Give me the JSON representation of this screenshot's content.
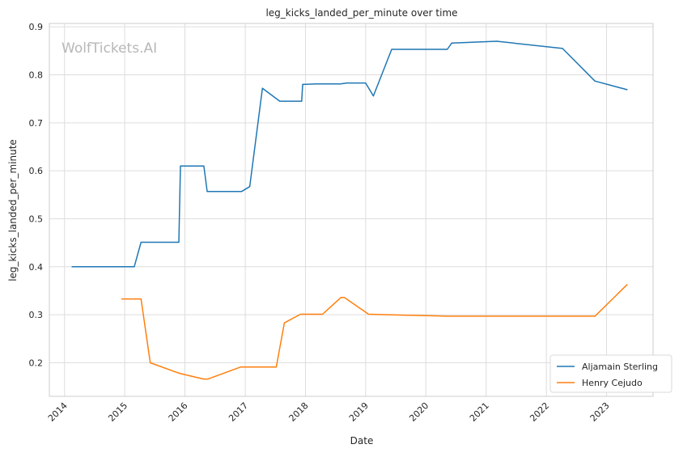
{
  "watermark": "WolfTickets.AI",
  "chart_data": {
    "type": "line",
    "title": "leg_kicks_landed_per_minute over time",
    "xlabel": "Date",
    "ylabel": "leg_kicks_landed_per_minute",
    "xlim": [
      "2013-10-01",
      "2023-10-10"
    ],
    "ylim": [
      0.13,
      0.907
    ],
    "x_ticks": [
      "2014",
      "2015",
      "2016",
      "2017",
      "2018",
      "2019",
      "2020",
      "2021",
      "2022",
      "2023"
    ],
    "y_ticks": [
      0.2,
      0.3,
      0.4,
      0.5,
      0.6,
      0.7,
      0.8,
      0.9
    ],
    "y_tick_labels": [
      "0.2",
      "0.3",
      "0.4",
      "0.5",
      "0.6",
      "0.7",
      "0.8",
      "0.9"
    ],
    "grid": true,
    "legend_position": "lower right",
    "series": [
      {
        "name": "Aljamain Sterling",
        "color": "#1f77b4",
        "points": [
          [
            "2014-02-15",
            0.4
          ],
          [
            "2015-02-28",
            0.4
          ],
          [
            "2015-04-10",
            0.451
          ],
          [
            "2015-11-25",
            0.451
          ],
          [
            "2015-12-05",
            0.61
          ],
          [
            "2016-04-25",
            0.61
          ],
          [
            "2016-05-15",
            0.557
          ],
          [
            "2016-12-10",
            0.557
          ],
          [
            "2017-01-28",
            0.567
          ],
          [
            "2017-04-15",
            0.772
          ],
          [
            "2017-07-29",
            0.745
          ],
          [
            "2017-12-09",
            0.745
          ],
          [
            "2017-12-15",
            0.78
          ],
          [
            "2018-03-01",
            0.781
          ],
          [
            "2018-08-01",
            0.781
          ],
          [
            "2018-09-08",
            0.783
          ],
          [
            "2019-01-01",
            0.783
          ],
          [
            "2019-02-17",
            0.756
          ],
          [
            "2019-06-08",
            0.853
          ],
          [
            "2020-05-10",
            0.853
          ],
          [
            "2020-06-06",
            0.866
          ],
          [
            "2021-03-06",
            0.87
          ],
          [
            "2022-04-09",
            0.855
          ],
          [
            "2022-10-22",
            0.787
          ],
          [
            "2023-05-06",
            0.769
          ]
        ]
      },
      {
        "name": "Henry Cejudo",
        "color": "#ff7f0e",
        "points": [
          [
            "2014-12-13",
            0.333
          ],
          [
            "2015-04-10",
            0.333
          ],
          [
            "2015-06-05",
            0.2
          ],
          [
            "2015-11-20",
            0.179
          ],
          [
            "2015-12-10",
            0.177
          ],
          [
            "2016-04-23",
            0.166
          ],
          [
            "2016-05-20",
            0.166
          ],
          [
            "2016-12-03",
            0.191
          ],
          [
            "2017-07-08",
            0.191
          ],
          [
            "2017-08-26",
            0.283
          ],
          [
            "2017-12-02",
            0.301
          ],
          [
            "2018-04-15",
            0.301
          ],
          [
            "2018-08-04",
            0.336
          ],
          [
            "2018-08-25",
            0.336
          ],
          [
            "2019-01-19",
            0.301
          ],
          [
            "2020-05-09",
            0.297
          ],
          [
            "2022-10-23",
            0.297
          ],
          [
            "2023-05-06",
            0.363
          ]
        ]
      }
    ]
  }
}
